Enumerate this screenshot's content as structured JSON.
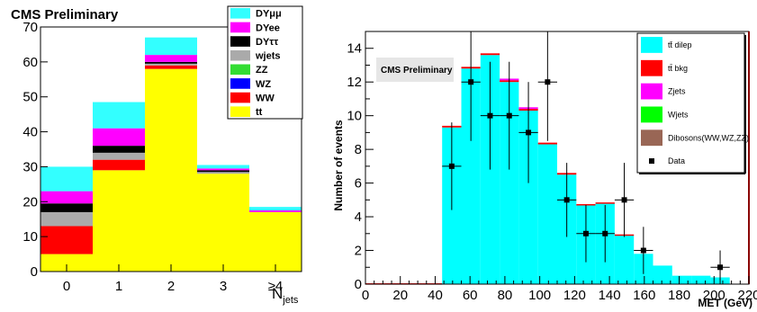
{
  "chart_data": [
    {
      "type": "bar",
      "stacked": true,
      "title": "CMS Preliminary",
      "xlabel": "N_jets",
      "ylabel": "",
      "categories": [
        "0",
        "1",
        "2",
        "3",
        "≥4"
      ],
      "ylim": [
        0,
        70
      ],
      "yticks": [
        0,
        10,
        20,
        30,
        40,
        50,
        60,
        70
      ],
      "legend_position": "top-right",
      "series": [
        {
          "name": "tt",
          "color": "#ffff00",
          "values": [
            5,
            29,
            58,
            28,
            17
          ]
        },
        {
          "name": "WW",
          "color": "#ff0000",
          "values": [
            8,
            3,
            1,
            0,
            0
          ]
        },
        {
          "name": "WZ",
          "color": "#0000ff",
          "values": [
            0,
            0,
            0,
            0,
            0
          ]
        },
        {
          "name": "ZZ",
          "color": "#33dd33",
          "values": [
            0,
            0,
            0,
            0,
            0
          ]
        },
        {
          "name": "wjets",
          "color": "#aaaaaa",
          "values": [
            4,
            2,
            0.5,
            0.5,
            0
          ]
        },
        {
          "name": "DYττ",
          "color": "#000000",
          "values": [
            2.5,
            2,
            0.5,
            0.5,
            0
          ]
        },
        {
          "name": "DYee",
          "color": "#ff00ff",
          "values": [
            3.5,
            5,
            2,
            0.5,
            0.5
          ]
        },
        {
          "name": "DYμμ",
          "color": "#33ffff",
          "values": [
            7,
            7.5,
            5,
            1,
            1
          ]
        }
      ]
    },
    {
      "type": "bar",
      "stacked": true,
      "title": "CMS Preliminary",
      "xlabel": "MET (GeV)",
      "ylabel": "Number of events",
      "xlim": [
        0,
        220
      ],
      "ylim": [
        0,
        15
      ],
      "xticks": [
        0,
        20,
        40,
        60,
        80,
        100,
        120,
        140,
        160,
        180,
        200,
        220
      ],
      "yticks": [
        0,
        2,
        4,
        6,
        8,
        10,
        12,
        14
      ],
      "legend_position": "top-right",
      "bin_edges": [
        0,
        11,
        22,
        33,
        44,
        55,
        66,
        77,
        88,
        99,
        110,
        121,
        132,
        143,
        154,
        165,
        176,
        187,
        198,
        209,
        220
      ],
      "series": [
        {
          "name": "tt̄ dilep",
          "color": "#00ffff",
          "values": [
            0,
            0,
            0,
            0,
            9.3,
            12.8,
            13.6,
            12.0,
            10.3,
            8.3,
            6.5,
            4.7,
            4.8,
            2.9,
            1.8,
            1.1,
            0.5,
            0.5,
            0.4,
            0
          ]
        },
        {
          "name": "tt̄ bkg",
          "color": "#ff0000",
          "values": [
            0.05,
            0.05,
            0.05,
            0.05,
            0.1,
            0.1,
            0.1,
            0.1,
            0.1,
            0.1,
            0.1,
            0.05,
            0.05,
            0.05,
            0,
            0,
            0,
            0,
            0,
            0
          ]
        },
        {
          "name": "Zjets",
          "color": "#ff00ff",
          "values": [
            0,
            0,
            0,
            0,
            0,
            0,
            0,
            0.1,
            0.1,
            0,
            0,
            0,
            0,
            0,
            0,
            0,
            0,
            0,
            0,
            0
          ]
        },
        {
          "name": "Wjets",
          "color": "#00ff00",
          "values": [
            0,
            0,
            0,
            0,
            0,
            0,
            0,
            0,
            0,
            0,
            0,
            0,
            0,
            0,
            0,
            0,
            0,
            0,
            0,
            0
          ]
        },
        {
          "name": "Dibosons(WW,WZ,ZZ)",
          "color": "#996655",
          "values": [
            0,
            0,
            0,
            0,
            0,
            0,
            0,
            0,
            0,
            0,
            0,
            0,
            0,
            0,
            0,
            0,
            0,
            0,
            0,
            0
          ]
        }
      ],
      "data_points": {
        "name": "Data",
        "x": [
          49.5,
          60.5,
          71.5,
          82.5,
          93.5,
          104.5,
          115.5,
          126.5,
          137.5,
          148.5,
          159.5,
          203.5
        ],
        "y": [
          7,
          12,
          10,
          10,
          9,
          12,
          5,
          3,
          3,
          5,
          2,
          1
        ],
        "yerr": [
          2.6,
          3.5,
          3.2,
          3.2,
          3.0,
          3.5,
          2.2,
          1.7,
          1.7,
          2.2,
          1.4,
          1.0
        ],
        "xerr": 5.5
      }
    }
  ]
}
